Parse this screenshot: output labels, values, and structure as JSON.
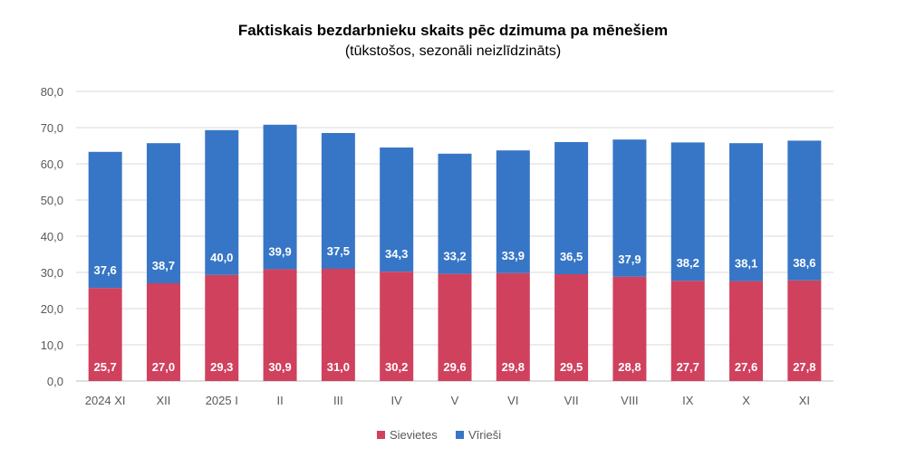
{
  "chart_data": {
    "type": "bar",
    "stacked": true,
    "title": "Faktiskais bezdarbnieku skaits pēc dzimuma pa mēnešiem",
    "subtitle": "(tūkstošos, sezonāli neizlīdzināts)",
    "categories": [
      "2024 XI",
      "XII",
      "2025 I",
      "II",
      "III",
      "IV",
      "V",
      "VI",
      "VII",
      "VIII",
      "IX",
      "X",
      "XI"
    ],
    "series": [
      {
        "name": "Sievietes",
        "color": "#D0415E",
        "values": [
          25.7,
          27.0,
          29.3,
          30.9,
          31.0,
          30.2,
          29.6,
          29.8,
          29.5,
          28.8,
          27.7,
          27.6,
          27.8
        ],
        "labels": [
          "25,7",
          "27,0",
          "29,3",
          "30,9",
          "31,0",
          "30,2",
          "29,6",
          "29,8",
          "29,5",
          "28,8",
          "27,7",
          "27,6",
          "27,8"
        ]
      },
      {
        "name": "Vīrieši",
        "color": "#3776C6",
        "values": [
          37.6,
          38.7,
          40.0,
          39.9,
          37.5,
          34.3,
          33.2,
          33.9,
          36.5,
          37.9,
          38.2,
          38.1,
          38.6
        ],
        "labels": [
          "37,6",
          "38,7",
          "40,0",
          "39,9",
          "37,5",
          "34,3",
          "33,2",
          "33,9",
          "36,5",
          "37,9",
          "38,2",
          "38,1",
          "38,6"
        ]
      }
    ],
    "ylim": [
      0,
      80
    ],
    "yticks": [
      "0,0",
      "10,0",
      "20,0",
      "30,0",
      "40,0",
      "50,0",
      "60,0",
      "70,0",
      "80,0"
    ],
    "ytick_values": [
      0,
      10,
      20,
      30,
      40,
      50,
      60,
      70,
      80
    ],
    "grid": true,
    "legend_position": "bottom",
    "xlabel": "",
    "ylabel": ""
  }
}
